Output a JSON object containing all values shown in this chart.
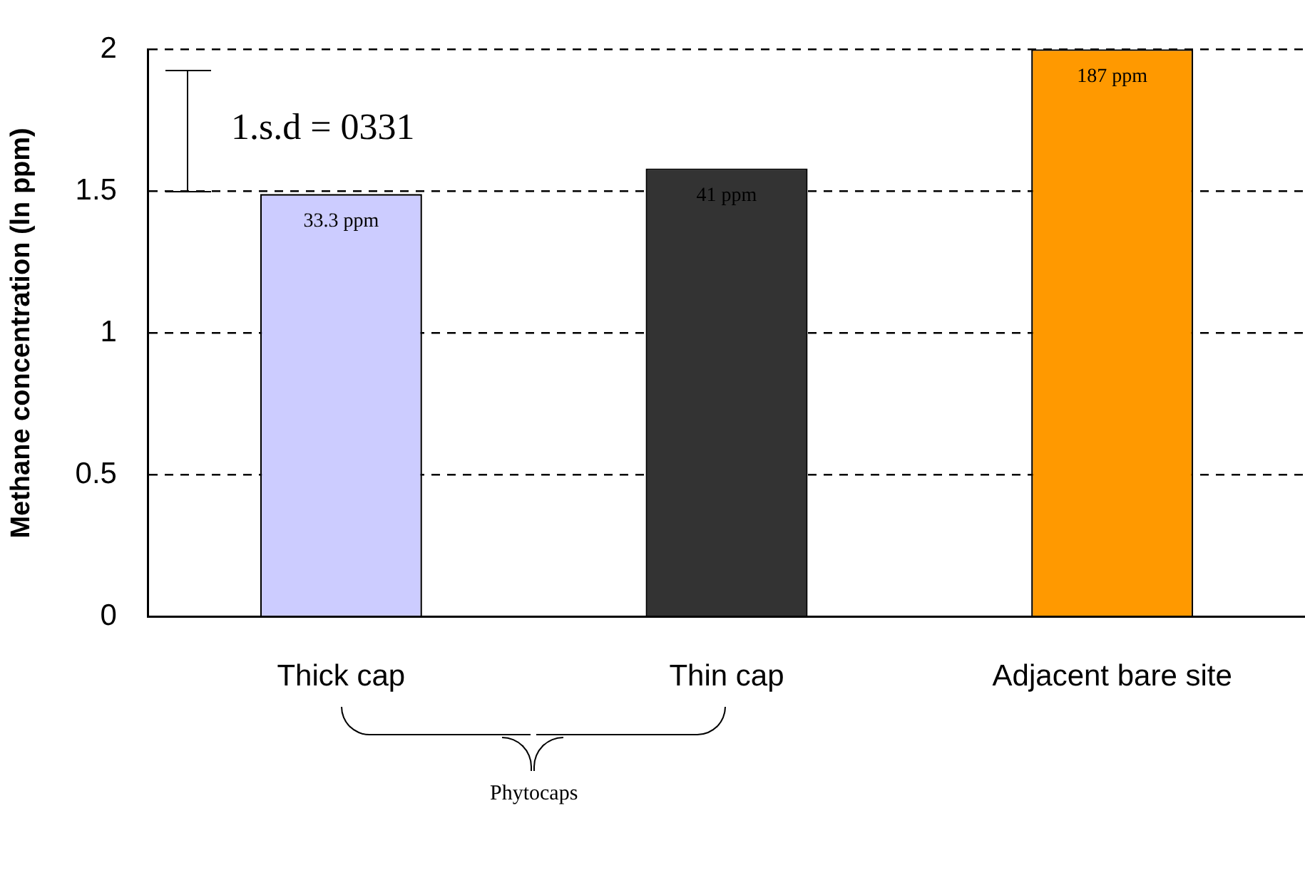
{
  "chart_data": {
    "type": "bar",
    "ylabel": "Methane concentration (ln ppm)",
    "categories": [
      "Thick cap",
      "Thin cap",
      "Adjacent bare site"
    ],
    "values": [
      1.49,
      1.58,
      2.0
    ],
    "colors": [
      "#ccccff",
      "#333333",
      "#ff9900"
    ],
    "ylim": [
      0,
      2
    ],
    "yticks": [
      0,
      0.5,
      1,
      1.5,
      2
    ],
    "grid": "y",
    "legend": false,
    "annotations": [
      "1.s.d = 0331",
      {
        "text": "33.3 ppm",
        "x": "Thick cap",
        "y": 1.49
      },
      {
        "text": "41 ppm",
        "x": "Thin cap",
        "y": 1.58
      },
      {
        "text": "187 ppm",
        "x": "Adjacent bare site",
        "y": 2.0
      },
      "Phytocaps"
    ]
  }
}
